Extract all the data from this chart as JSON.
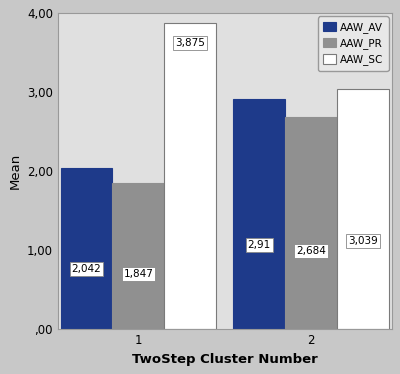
{
  "clusters": [
    "1",
    "2"
  ],
  "series": [
    "AAW_AV",
    "AAW_PR",
    "AAW_SC"
  ],
  "values": {
    "AAW_AV": [
      2.042,
      2.91
    ],
    "AAW_PR": [
      1.847,
      2.684
    ],
    "AAW_SC": [
      3.875,
      3.039
    ]
  },
  "labels": {
    "AAW_AV": [
      "2,042",
      "2,91"
    ],
    "AAW_PR": [
      "1,847",
      "2,684"
    ],
    "AAW_SC": [
      "3,875",
      "3,039"
    ]
  },
  "colors": {
    "AAW_AV": "#1E3A8A",
    "AAW_PR": "#909090",
    "AAW_SC": "#FFFFFF"
  },
  "edgecolors": {
    "AAW_AV": "#1E3A8A",
    "AAW_PR": "#909090",
    "AAW_SC": "#7A7A7A"
  },
  "ylabel": "Mean",
  "xlabel": "TwoStep Cluster Number",
  "ylim": [
    0.0,
    4.0
  ],
  "yticks": [
    0.0,
    1.0,
    2.0,
    3.0,
    4.0
  ],
  "ytick_labels": [
    ",00",
    "1,00",
    "2,00",
    "3,00",
    "4,00"
  ],
  "plot_bg_color": "#E0E0E0",
  "outer_bg_color": "#C8C8C8",
  "bar_width": 0.18,
  "label_fontsize": 7.5,
  "axis_label_fontsize": 9.5,
  "tick_fontsize": 8.5,
  "group_centers": [
    0.3,
    0.9
  ],
  "xlim": [
    0.02,
    1.18
  ]
}
